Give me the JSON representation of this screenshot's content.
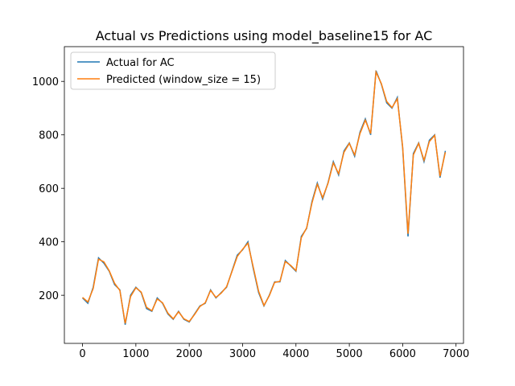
{
  "chart_data": {
    "type": "line",
    "title": "Actual vs Predictions using model_baseline15 for AC",
    "x": [
      0,
      100,
      200,
      300,
      400,
      500,
      600,
      700,
      800,
      900,
      1000,
      1100,
      1200,
      1300,
      1400,
      1500,
      1600,
      1700,
      1800,
      1900,
      2000,
      2100,
      2200,
      2300,
      2400,
      2500,
      2600,
      2700,
      2800,
      2900,
      3000,
      3100,
      3200,
      3300,
      3400,
      3500,
      3600,
      3700,
      3800,
      3900,
      4000,
      4100,
      4200,
      4300,
      4400,
      4500,
      4600,
      4700,
      4800,
      4900,
      5000,
      5100,
      5200,
      5300,
      5400,
      5500,
      5600,
      5700,
      5800,
      5900,
      6000,
      6100,
      6200,
      6300,
      6400,
      6500,
      6600,
      6700,
      6800
    ],
    "series": [
      {
        "name": "Actual for AC",
        "color": "#1f77b4",
        "values": [
          190,
          170,
          230,
          340,
          320,
          290,
          240,
          220,
          90,
          200,
          230,
          210,
          150,
          140,
          190,
          170,
          130,
          110,
          140,
          110,
          100,
          130,
          160,
          170,
          220,
          190,
          210,
          230,
          290,
          350,
          370,
          400,
          300,
          210,
          160,
          200,
          250,
          250,
          330,
          310,
          290,
          420,
          450,
          550,
          620,
          560,
          620,
          700,
          650,
          740,
          770,
          720,
          810,
          860,
          800,
          1040,
          990,
          920,
          900,
          940,
          750,
          420,
          730,
          770,
          700,
          780,
          800,
          640,
          740
        ]
      },
      {
        "name": "Predicted (window_size = 15)",
        "color": "#ff7f0e",
        "values": [
          192,
          175,
          225,
          335,
          325,
          292,
          245,
          218,
          95,
          195,
          228,
          212,
          155,
          142,
          186,
          172,
          133,
          112,
          138,
          112,
          102,
          128,
          158,
          172,
          218,
          192,
          208,
          232,
          288,
          345,
          372,
          395,
          305,
          215,
          162,
          198,
          248,
          252,
          326,
          312,
          292,
          415,
          452,
          545,
          615,
          565,
          618,
          695,
          655,
          735,
          768,
          725,
          805,
          855,
          805,
          1035,
          992,
          925,
          902,
          935,
          755,
          430,
          725,
          768,
          705,
          775,
          798,
          645,
          735
        ]
      }
    ],
    "xlim": [
      -340,
      7140
    ],
    "xticks": [
      0,
      1000,
      2000,
      3000,
      4000,
      5000,
      6000,
      7000
    ],
    "ylim": [
      20,
      1130
    ],
    "yticks": [
      200,
      400,
      600,
      800,
      1000
    ],
    "legend": "upper left"
  }
}
